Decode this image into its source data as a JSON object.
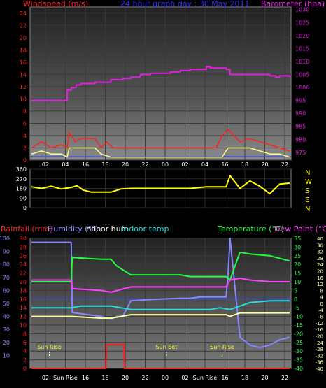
{
  "chart_data": [
    {
      "type": "line",
      "title": "24 hour graph day : 30 May 2011",
      "left_axis_label": "Windspeed (m/s)",
      "right_axis_label": "Barometer (hpa)",
      "left_ticks": [
        0,
        2,
        4,
        6,
        8,
        10,
        12,
        14,
        16,
        18,
        20,
        22,
        24
      ],
      "right_ticks": [
        975,
        980,
        985,
        990,
        995,
        1000,
        1005,
        1010,
        1015,
        1020,
        1025,
        1030
      ],
      "ylim_left": [
        0,
        25
      ],
      "ylim_right": [
        972,
        1031
      ],
      "x_ticks": [
        "02",
        "04",
        "16",
        "18",
        "20",
        "22",
        "00",
        "02",
        "04",
        "16",
        "18",
        "20",
        "22"
      ],
      "series": [
        {
          "name": "Barometer (hpa)",
          "color": "#e020e0",
          "axis": "right",
          "x": [
            0,
            1.0,
            1.7,
            1.8,
            2.0,
            2.25,
            2.5,
            3.2,
            4.0,
            4.6,
            5.0,
            5.45,
            5.5,
            6.0,
            6.5,
            7.0,
            7.5,
            8.0,
            8.5,
            8.8,
            9.0,
            9.8,
            10.0,
            10.5,
            11.0,
            11.5,
            12.0,
            12.3,
            12.5,
            13.0
          ],
          "y": [
            995,
            995,
            995,
            999,
            1000,
            1001,
            1001.5,
            1002,
            1003,
            1003.5,
            1004,
            1004.5,
            1005,
            1005.5,
            1005.5,
            1006,
            1006.5,
            1007,
            1007,
            1008,
            1007.5,
            1007,
            1005,
            1005,
            1005,
            1005,
            1004.5,
            1004,
            1004.5,
            1004
          ]
        },
        {
          "name": "Wind gust",
          "color": "#ff2020",
          "axis": "left",
          "x": [
            0,
            0.5,
            1.0,
            1.5,
            1.8,
            1.9,
            2.2,
            2.5,
            3.2,
            3.5,
            3.8,
            4.1,
            4.5,
            5.0,
            6.0,
            7.0,
            7.5,
            7.9,
            8.0,
            8.6,
            9.0,
            9.3,
            9.6,
            9.9,
            10.2,
            10.5,
            11.0,
            11.5,
            12.0,
            12.5,
            13.0
          ],
          "y": [
            2,
            3,
            2,
            2.5,
            2,
            4.5,
            3,
            3.5,
            3.5,
            2,
            3,
            2,
            2,
            2,
            2,
            2,
            2,
            2,
            2,
            2,
            2,
            2,
            4,
            5,
            4,
            3,
            3.5,
            3,
            2.5,
            2,
            1.5
          ]
        },
        {
          "name": "Wind average",
          "color": "#ffff80",
          "axis": "left",
          "x": [
            0,
            0.5,
            1.0,
            1.5,
            1.8,
            1.9,
            2.5,
            3.2,
            3.5,
            4.0,
            4.5,
            5.0,
            8.0,
            9.6,
            9.9,
            10.3,
            11.0,
            11.5,
            12.0,
            12.5,
            13.0
          ],
          "y": [
            1,
            1.5,
            1,
            1,
            0.5,
            2,
            2,
            2,
            1,
            0.5,
            0.5,
            0.5,
            0.5,
            0.5,
            2,
            2,
            2,
            1.5,
            1,
            1,
            0.5
          ]
        }
      ]
    },
    {
      "type": "line",
      "title": "",
      "left_ticks": [
        0,
        90,
        180,
        270,
        360
      ],
      "right_labels": [
        "N",
        "W",
        "S",
        "E",
        "N"
      ],
      "ylim": [
        0,
        360
      ],
      "series": [
        {
          "name": "Wind direction",
          "color": "#ffff00",
          "x": [
            0,
            0.5,
            1,
            1.5,
            2.0,
            2.3,
            2.6,
            3.0,
            3.5,
            4.0,
            4.5,
            5.0,
            5.5,
            6.0,
            7.0,
            8.0,
            8.8,
            9.0,
            9.5,
            9.8,
            10.0,
            10.5,
            11.0,
            11.5,
            12.0,
            12.5,
            13.0
          ],
          "y": [
            195,
            180,
            200,
            175,
            190,
            205,
            165,
            145,
            145,
            145,
            175,
            180,
            180,
            180,
            180,
            180,
            195,
            195,
            195,
            195,
            300,
            180,
            250,
            200,
            130,
            220,
            230
          ]
        }
      ]
    },
    {
      "type": "line",
      "title": "",
      "axis_labels": [
        "Rainfall (mm)",
        "Humidity (%)",
        "Indoor hum",
        "Indoor temp",
        "Temperature (°C)",
        "Dew Point (°C)"
      ],
      "rain_ticks": [
        0,
        2,
        4,
        6,
        8,
        10,
        12,
        14,
        16,
        18,
        20,
        22,
        24,
        26,
        28,
        30
      ],
      "humidity_ticks": [
        10,
        20,
        30,
        40,
        50,
        60,
        70,
        80,
        90,
        100
      ],
      "temp_ticks": [
        35,
        30,
        25,
        20,
        15,
        10,
        5,
        0,
        -5,
        -10,
        -15,
        -20,
        -25,
        -30,
        -35,
        -40
      ],
      "dew_ticks": [
        40,
        36,
        32,
        28,
        24,
        20,
        16,
        12,
        8,
        4,
        0,
        -4,
        -8,
        -12,
        -16,
        -20,
        -24,
        -28,
        -32,
        -36,
        -40
      ],
      "sun_labels": [
        {
          "text": "Sun Rise",
          "x": 0.9
        },
        {
          "text": "Sun Set",
          "x": 6.8
        },
        {
          "text": "Sun Rise",
          "x": 9.6
        }
      ],
      "x_ticks": [
        "02",
        "Sun Rise",
        "16",
        "18",
        "20",
        "22",
        "00",
        "02",
        "Sun Rise",
        "16",
        "18",
        "20",
        "22"
      ],
      "series": [
        {
          "name": "Humidity (%)",
          "color": "#8888ff",
          "x": [
            0,
            2.0,
            2.05,
            3.5,
            4.0,
            4.3,
            4.6,
            5.0,
            6.0,
            7.5,
            8.0,
            8.5,
            9.8,
            9.9,
            10.0,
            10.5,
            11.0,
            11.5,
            12.0,
            12.5,
            13.0
          ],
          "y": [
            97,
            97,
            43,
            40,
            38,
            40,
            40,
            52,
            53,
            54,
            54,
            55,
            55,
            72,
            100,
            24,
            18,
            16,
            18,
            22,
            24
          ]
        },
        {
          "name": "Temperature (°C)",
          "color": "#20ff40",
          "x": [
            0,
            2.0,
            2.05,
            3.5,
            4.0,
            4.3,
            5.0,
            6.0,
            7.5,
            8.0,
            9.8,
            10.0,
            10.5,
            11.0,
            12.0,
            13.0
          ],
          "y": [
            10,
            10,
            24,
            23,
            23,
            19,
            14,
            14,
            14,
            13,
            13,
            11,
            27,
            26,
            25,
            22
          ]
        },
        {
          "name": "Indoor hum",
          "color": "#ff40ff",
          "x": [
            0,
            2.0,
            2.05,
            3.5,
            4.0,
            5.0,
            6.0,
            8.0,
            9.8,
            10.0,
            10.5,
            11.0,
            12.0,
            13.0
          ],
          "y": [
            11,
            11,
            6,
            5,
            4,
            7,
            7,
            7,
            7,
            11,
            12,
            11,
            10,
            10
          ]
        },
        {
          "name": "Indoor temp",
          "color": "#20e0e0",
          "x": [
            0,
            1.0,
            2.0,
            2.5,
            3.0,
            3.5,
            4.0,
            5.0,
            6.0,
            7.0,
            8.0,
            9.0,
            9.5,
            10.0,
            10.5,
            11.0,
            12.0,
            13.0
          ],
          "y": [
            -5,
            -5,
            -5,
            -4,
            -4,
            -4,
            -4,
            -6,
            -6,
            -6,
            -6,
            -6,
            -5,
            -6,
            -4,
            -2,
            -1,
            -1
          ]
        },
        {
          "name": "Dew Point (°C)",
          "color": "#ffffa0",
          "x": [
            0,
            2.0,
            2.05,
            3.5,
            4.0,
            5.0,
            6.0,
            8.0,
            9.8,
            10.0,
            10.5,
            11.0,
            12.0,
            13.0
          ],
          "y": [
            -10,
            -10,
            -10,
            -11,
            -11,
            -9,
            -9,
            -9,
            -9,
            -10,
            -8,
            -8,
            -8,
            -8
          ]
        },
        {
          "name": "Rainfall (mm)",
          "color": "#ff2020",
          "x": [
            0,
            3.75,
            3.78,
            4.65,
            4.68,
            13.0
          ],
          "y": [
            0,
            0,
            5.5,
            5.5,
            0,
            0
          ]
        }
      ]
    }
  ]
}
